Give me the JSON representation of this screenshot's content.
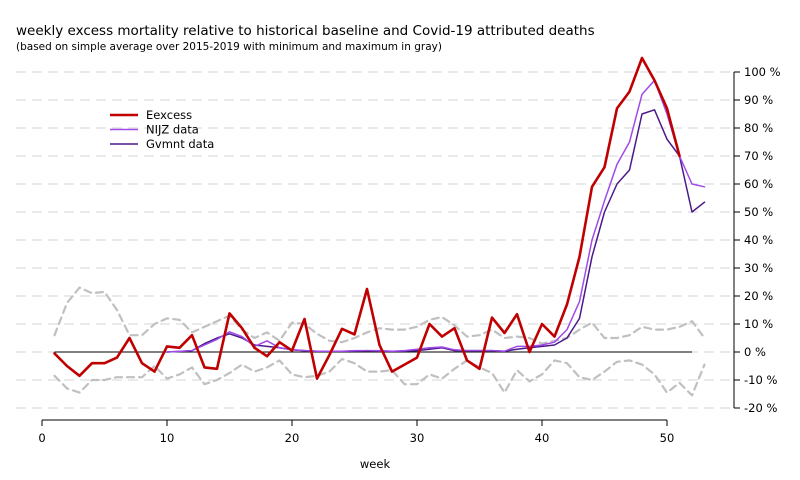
{
  "chart_data": {
    "type": "line",
    "title": "weekly excess mortality relative to historical baseline and Covid-19 attributed deaths",
    "subtitle": "(based on simple average over 2015-2019 with minimum and maximum in gray)",
    "xlabel": "week",
    "ylabel": "",
    "xlim": [
      0,
      54
    ],
    "ylim": [
      -20,
      105
    ],
    "x_ticks": [
      0,
      10,
      20,
      30,
      40,
      50
    ],
    "y_ticks": [
      -20,
      -10,
      0,
      10,
      20,
      30,
      40,
      50,
      60,
      70,
      80,
      90,
      100
    ],
    "y_tick_labels": [
      "-20 %",
      "-10 %",
      "0 %",
      "10 %",
      "20 %",
      "30 %",
      "40 %",
      "50 %",
      "60 %",
      "70 %",
      "80 %",
      "90 %",
      "100 %"
    ],
    "y_axis_side": "right",
    "grid": "horizontal dashed",
    "legend_position": "top-left",
    "reference_line": {
      "y": 0,
      "x": [
        1,
        52
      ]
    },
    "series": [
      {
        "name": "Eexcess",
        "color": "#c00000",
        "x": [
          1,
          2,
          3,
          4,
          5,
          6,
          7,
          8,
          9,
          10,
          11,
          12,
          13,
          14,
          15,
          16,
          17,
          18,
          19,
          20,
          21,
          22,
          23,
          24,
          25,
          26,
          27,
          28,
          29,
          30,
          31,
          32,
          33,
          34,
          35,
          36,
          37,
          38,
          39,
          40,
          41,
          42,
          43,
          44,
          45,
          46,
          47,
          48,
          49,
          50,
          51
        ],
        "values": [
          -0.5,
          -5,
          -8.5,
          -4,
          -4,
          -2,
          5,
          -4,
          -7,
          2,
          1.5,
          6,
          -5.5,
          -6,
          13.8,
          8.5,
          1.5,
          -1.5,
          3.5,
          0.5,
          11.8,
          -9.5,
          -1,
          8.3,
          6.3,
          22.5,
          2.5,
          -7,
          -4.5,
          -2,
          10,
          5.5,
          8.5,
          -3,
          -6,
          12.3,
          6.8,
          13.5,
          0,
          10,
          5.5,
          17,
          34,
          59,
          66,
          87,
          93,
          105,
          97,
          87,
          70
        ]
      },
      {
        "name": "NIJZ data",
        "color": "#a04ae8",
        "x": [
          10,
          11,
          12,
          13,
          14,
          15,
          16,
          17,
          18,
          19,
          20,
          21,
          22,
          23,
          24,
          25,
          26,
          27,
          28,
          29,
          30,
          31,
          32,
          33,
          34,
          35,
          36,
          37,
          38,
          39,
          40,
          41,
          42,
          43,
          44,
          45,
          46,
          47,
          48,
          49,
          50,
          51,
          52,
          53
        ],
        "values": [
          0,
          0.2,
          0.5,
          2.5,
          4.5,
          7.2,
          5.5,
          2,
          4,
          1.5,
          0.8,
          0.5,
          0.3,
          0.3,
          0.3,
          0.5,
          0.5,
          0.5,
          0.3,
          0.5,
          1,
          1.5,
          1.8,
          0.8,
          0.5,
          0.5,
          0.5,
          0.3,
          2,
          2,
          2.5,
          3.5,
          8,
          18,
          40,
          54,
          67,
          75,
          92,
          97,
          85,
          70,
          60,
          59
        ]
      },
      {
        "name": "Gvmnt data",
        "color": "#4b1a8a",
        "x": [
          10,
          11,
          12,
          13,
          14,
          15,
          16,
          17,
          18,
          19,
          20,
          21,
          22,
          23,
          24,
          25,
          26,
          27,
          28,
          29,
          30,
          31,
          32,
          33,
          34,
          35,
          36,
          37,
          38,
          39,
          40,
          41,
          42,
          43,
          44,
          45,
          46,
          47,
          48,
          49,
          50,
          51,
          52,
          53
        ],
        "values": [
          0,
          0.2,
          0.5,
          3,
          5,
          6.5,
          5,
          2.5,
          2,
          1.5,
          0.8,
          0.5,
          0.3,
          0.3,
          0.3,
          0.3,
          0.5,
          0.3,
          0.3,
          0.3,
          0.5,
          1,
          1.5,
          0.5,
          0.5,
          0.5,
          0.5,
          0.3,
          1,
          1.5,
          2,
          2.5,
          5,
          12,
          34,
          50,
          60,
          65,
          85,
          86.5,
          76,
          70,
          50,
          53.5
        ]
      },
      {
        "name": "",
        "role": "historical maximum",
        "color": "#c0c0c0",
        "dashed": true,
        "x": [
          1,
          2,
          3,
          4,
          5,
          6,
          7,
          8,
          9,
          10,
          11,
          12,
          13,
          14,
          15,
          16,
          17,
          18,
          19,
          20,
          21,
          22,
          23,
          24,
          25,
          26,
          27,
          28,
          29,
          30,
          31,
          32,
          33,
          34,
          35,
          36,
          37,
          38,
          39,
          40,
          41,
          42,
          43,
          44,
          45,
          46,
          47,
          48,
          49,
          50,
          51,
          52,
          53
        ],
        "values": [
          6,
          17.5,
          23,
          21,
          21.5,
          15,
          6,
          6,
          10,
          12,
          11.5,
          7,
          9,
          11,
          13,
          8,
          5,
          7,
          4,
          10.5,
          10,
          6.5,
          4,
          3.5,
          5,
          7,
          8.5,
          8,
          8,
          9,
          11.5,
          12.5,
          9.5,
          5.5,
          6,
          8,
          5,
          5.5,
          5,
          3,
          4,
          5,
          8,
          10.5,
          5,
          5,
          6,
          9,
          8,
          8,
          9,
          11,
          5
        ]
      },
      {
        "name": "",
        "role": "historical minimum",
        "color": "#c0c0c0",
        "dashed": true,
        "x": [
          1,
          2,
          3,
          4,
          5,
          6,
          7,
          8,
          9,
          10,
          11,
          12,
          13,
          14,
          15,
          16,
          17,
          18,
          19,
          20,
          21,
          22,
          23,
          24,
          25,
          26,
          27,
          28,
          29,
          30,
          31,
          32,
          33,
          34,
          35,
          36,
          37,
          38,
          39,
          40,
          41,
          42,
          43,
          44,
          45,
          46,
          47,
          48,
          49,
          50,
          51,
          52,
          53
        ],
        "values": [
          -8.5,
          -13,
          -14.5,
          -10,
          -10,
          -9,
          -9,
          -9,
          -5,
          -9.5,
          -8,
          -5.5,
          -11.5,
          -10,
          -7.5,
          -4.5,
          -7,
          -5.5,
          -3,
          -8,
          -9,
          -8.5,
          -7,
          -2.5,
          -4,
          -7,
          -7,
          -6.5,
          -11.5,
          -11.5,
          -8,
          -9.5,
          -6,
          -3,
          -5.5,
          -7.5,
          -14.5,
          -6.5,
          -10.5,
          -8,
          -3,
          -4,
          -9,
          -10,
          -7,
          -3.5,
          -3,
          -4.5,
          -8,
          -14.5,
          -11,
          -15.5,
          -4.5
        ]
      }
    ]
  }
}
